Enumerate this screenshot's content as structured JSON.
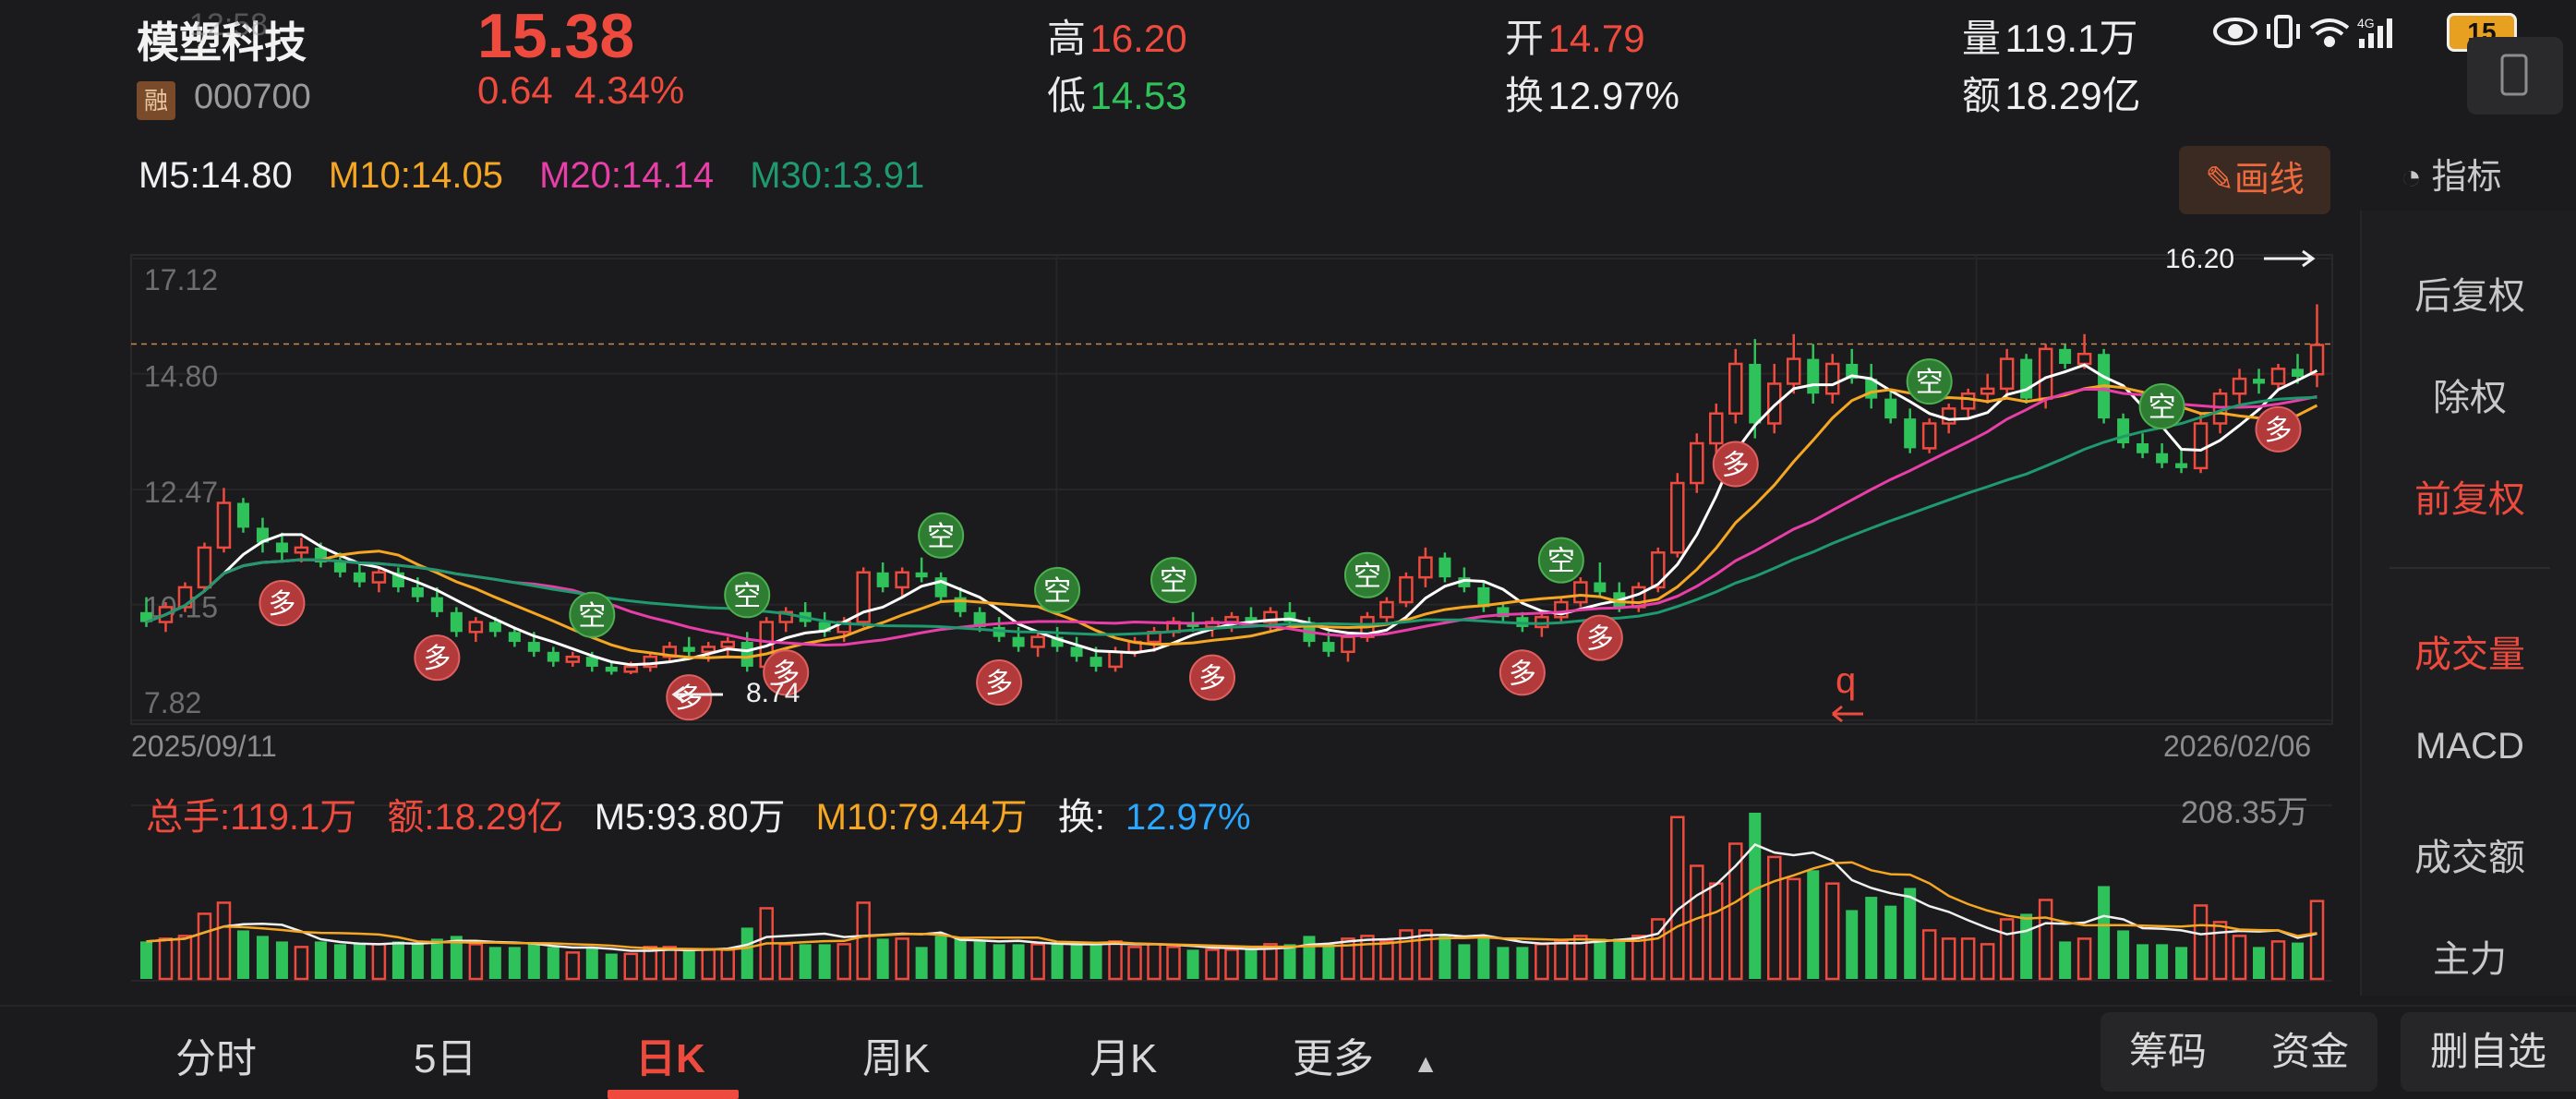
{
  "header": {
    "stock_name": "模塑科技",
    "time_overlay": "12:58",
    "badge": "融",
    "code": "000700",
    "price": "15.38",
    "change": "0.64",
    "change_pct": "4.34%",
    "high_label": "高",
    "high": "16.20",
    "low_label": "低",
    "low": "14.53",
    "open_label": "开",
    "open": "14.79",
    "turnover_label": "换",
    "turnover": "12.97%",
    "volume_label": "量",
    "volume": "119.1万",
    "amount_label": "额",
    "amount": "18.29亿",
    "battery": "15"
  },
  "ma": {
    "m5": "M5:14.80",
    "m10": "M10:14.05",
    "m20": "M20:14.14",
    "m30": "M30:13.91",
    "colors": {
      "m5": "#ffffff",
      "m10": "#f5a623",
      "m20": "#e83ea8",
      "m30": "#1e9a6e"
    }
  },
  "toolbar": {
    "draw": "画线",
    "indicator": "指标"
  },
  "side_panel": {
    "items": [
      "后复权",
      "除权",
      "前复权",
      "成交量",
      "MACD",
      "成交额",
      "主力"
    ],
    "active": [
      "前复权",
      "成交量"
    ]
  },
  "price_axis": [
    "17.12",
    "14.80",
    "12.47",
    "10.15",
    "7.82"
  ],
  "dates": {
    "start": "2025/09/11",
    "end": "2026/02/06"
  },
  "annotations": {
    "max_label": "16.20",
    "min_label": "8.74",
    "signal_sell": "空",
    "signal_buy": "多",
    "q_mark": "q"
  },
  "volume_info": {
    "total": "总手:119.1万",
    "amount": "额:18.29亿",
    "m5": "M5:93.80万",
    "m10": "M10:79.44万",
    "turnover_label": "换:",
    "turnover": "12.97%",
    "max": "208.35万"
  },
  "tabs": [
    "分时",
    "5日",
    "日K",
    "周K",
    "月K",
    "更多"
  ],
  "active_tab": "日K",
  "bottom_buttons": {
    "chips": "筹码",
    "funds": "资金",
    "watchlist": "删自选"
  },
  "chart_data": {
    "type": "candlestick",
    "date_range": [
      "2025/09/11",
      "2026/02/06"
    ],
    "ylim": [
      7.82,
      17.12
    ],
    "highlight_high": 16.2,
    "highlight_low": 8.74,
    "candles": [
      [
        10.0,
        10.3,
        9.7,
        9.8
      ],
      [
        9.8,
        10.2,
        9.6,
        10.1
      ],
      [
        10.1,
        10.6,
        10.0,
        10.5
      ],
      [
        10.5,
        11.4,
        10.4,
        11.3
      ],
      [
        11.3,
        12.5,
        11.2,
        12.2
      ],
      [
        12.2,
        12.3,
        11.6,
        11.7
      ],
      [
        11.7,
        11.9,
        11.2,
        11.4
      ],
      [
        11.4,
        11.6,
        11.0,
        11.2
      ],
      [
        11.2,
        11.5,
        11.0,
        11.3
      ],
      [
        11.3,
        11.4,
        10.9,
        11.0
      ],
      [
        11.0,
        11.2,
        10.7,
        10.8
      ],
      [
        10.8,
        11.0,
        10.5,
        10.6
      ],
      [
        10.6,
        10.9,
        10.4,
        10.8
      ],
      [
        10.8,
        10.9,
        10.4,
        10.5
      ],
      [
        10.5,
        10.7,
        10.2,
        10.3
      ],
      [
        10.3,
        10.5,
        9.9,
        10.0
      ],
      [
        10.0,
        10.1,
        9.5,
        9.6
      ],
      [
        9.6,
        9.9,
        9.4,
        9.8
      ],
      [
        9.8,
        9.9,
        9.5,
        9.6
      ],
      [
        9.6,
        9.7,
        9.3,
        9.4
      ],
      [
        9.4,
        9.6,
        9.1,
        9.2
      ],
      [
        9.2,
        9.3,
        8.9,
        9.0
      ],
      [
        9.0,
        9.2,
        8.9,
        9.1
      ],
      [
        9.1,
        9.2,
        8.8,
        8.9
      ],
      [
        8.9,
        9.0,
        8.74,
        8.8
      ],
      [
        8.8,
        9.0,
        8.75,
        8.9
      ],
      [
        8.9,
        9.2,
        8.8,
        9.1
      ],
      [
        9.1,
        9.4,
        9.0,
        9.3
      ],
      [
        9.3,
        9.5,
        9.1,
        9.2
      ],
      [
        9.2,
        9.4,
        9.0,
        9.3
      ],
      [
        9.3,
        9.5,
        9.1,
        9.4
      ],
      [
        9.4,
        9.6,
        8.8,
        8.9
      ],
      [
        8.9,
        9.9,
        8.8,
        9.8
      ],
      [
        9.8,
        10.1,
        9.6,
        10.0
      ],
      [
        10.0,
        10.2,
        9.7,
        9.8
      ],
      [
        9.8,
        10.0,
        9.5,
        9.6
      ],
      [
        9.6,
        9.9,
        9.4,
        9.8
      ],
      [
        9.8,
        10.9,
        9.7,
        10.8
      ],
      [
        10.8,
        11.0,
        10.4,
        10.5
      ],
      [
        10.5,
        10.9,
        10.3,
        10.8
      ],
      [
        10.8,
        11.1,
        10.6,
        10.7
      ],
      [
        10.7,
        10.8,
        10.2,
        10.3
      ],
      [
        10.3,
        10.5,
        9.9,
        10.0
      ],
      [
        10.0,
        10.1,
        9.6,
        9.7
      ],
      [
        9.7,
        9.9,
        9.4,
        9.5
      ],
      [
        9.5,
        9.7,
        9.2,
        9.3
      ],
      [
        9.3,
        9.6,
        9.1,
        9.5
      ],
      [
        9.5,
        9.7,
        9.2,
        9.3
      ],
      [
        9.3,
        9.5,
        9.0,
        9.1
      ],
      [
        9.1,
        9.3,
        8.8,
        8.9
      ],
      [
        8.9,
        9.3,
        8.8,
        9.2
      ],
      [
        9.2,
        9.5,
        9.1,
        9.4
      ],
      [
        9.4,
        9.7,
        9.2,
        9.6
      ],
      [
        9.6,
        9.9,
        9.5,
        9.8
      ],
      [
        9.8,
        10.0,
        9.6,
        9.7
      ],
      [
        9.7,
        9.9,
        9.5,
        9.8
      ],
      [
        9.8,
        10.0,
        9.6,
        9.9
      ],
      [
        9.9,
        10.1,
        9.7,
        9.8
      ],
      [
        9.8,
        10.1,
        9.6,
        10.0
      ],
      [
        10.0,
        10.2,
        9.7,
        9.8
      ],
      [
        9.8,
        9.9,
        9.3,
        9.4
      ],
      [
        9.4,
        9.6,
        9.1,
        9.2
      ],
      [
        9.2,
        9.6,
        9.0,
        9.5
      ],
      [
        9.5,
        10.0,
        9.4,
        9.9
      ],
      [
        9.9,
        10.3,
        9.8,
        10.2
      ],
      [
        10.2,
        10.8,
        10.1,
        10.7
      ],
      [
        10.7,
        11.3,
        10.5,
        11.1
      ],
      [
        11.1,
        11.2,
        10.6,
        10.7
      ],
      [
        10.7,
        10.9,
        10.4,
        10.5
      ],
      [
        10.5,
        10.6,
        10.0,
        10.1
      ],
      [
        10.1,
        10.2,
        9.8,
        9.9
      ],
      [
        9.9,
        10.0,
        9.6,
        9.7
      ],
      [
        9.7,
        10.0,
        9.5,
        9.9
      ],
      [
        9.9,
        10.3,
        9.8,
        10.2
      ],
      [
        10.2,
        10.7,
        10.1,
        10.6
      ],
      [
        10.6,
        11.0,
        10.3,
        10.4
      ],
      [
        10.4,
        10.6,
        10.0,
        10.1
      ],
      [
        10.1,
        10.6,
        10.0,
        10.5
      ],
      [
        10.5,
        11.3,
        10.4,
        11.2
      ],
      [
        11.2,
        12.8,
        11.1,
        12.6
      ],
      [
        12.6,
        13.6,
        12.4,
        13.4
      ],
      [
        13.4,
        14.2,
        13.2,
        14.0
      ],
      [
        14.0,
        15.3,
        13.8,
        15.0
      ],
      [
        15.0,
        15.5,
        13.5,
        13.8
      ],
      [
        13.8,
        15.0,
        13.6,
        14.6
      ],
      [
        14.6,
        15.6,
        14.4,
        15.1
      ],
      [
        15.1,
        15.4,
        14.2,
        14.4
      ],
      [
        14.4,
        15.2,
        14.2,
        15.0
      ],
      [
        15.0,
        15.3,
        14.6,
        14.7
      ],
      [
        14.7,
        15.0,
        14.1,
        14.3
      ],
      [
        14.3,
        14.5,
        13.8,
        13.9
      ],
      [
        13.9,
        14.1,
        13.2,
        13.3
      ],
      [
        13.3,
        13.9,
        13.2,
        13.8
      ],
      [
        13.8,
        14.2,
        13.6,
        14.1
      ],
      [
        14.1,
        14.5,
        13.9,
        14.4
      ],
      [
        14.4,
        14.8,
        14.2,
        14.5
      ],
      [
        14.5,
        15.3,
        14.3,
        15.1
      ],
      [
        15.1,
        15.2,
        14.2,
        14.3
      ],
      [
        14.3,
        15.4,
        14.1,
        15.3
      ],
      [
        15.3,
        15.4,
        14.9,
        15.0
      ],
      [
        15.0,
        15.6,
        14.9,
        15.2
      ],
      [
        15.2,
        15.3,
        13.8,
        13.9
      ],
      [
        13.9,
        14.0,
        13.3,
        13.4
      ],
      [
        13.4,
        13.6,
        13.1,
        13.2
      ],
      [
        13.2,
        13.4,
        12.9,
        13.0
      ],
      [
        13.0,
        13.3,
        12.8,
        12.9
      ],
      [
        12.9,
        14.0,
        12.8,
        13.8
      ],
      [
        13.8,
        14.5,
        13.6,
        14.4
      ],
      [
        14.4,
        14.9,
        14.2,
        14.7
      ],
      [
        14.7,
        14.9,
        14.4,
        14.6
      ],
      [
        14.6,
        15.0,
        14.5,
        14.9
      ],
      [
        14.9,
        15.2,
        14.6,
        14.74
      ],
      [
        14.79,
        16.2,
        14.53,
        15.38
      ]
    ],
    "volume_max": "208.35万"
  }
}
